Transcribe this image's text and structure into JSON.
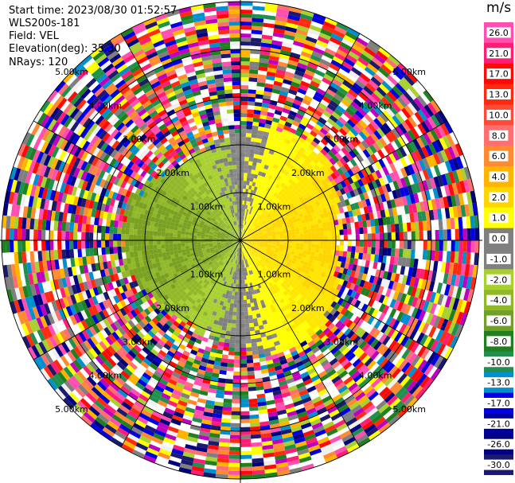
{
  "header": {
    "start_time": "Start time: 2023/08/30 01:52:57",
    "instrument": "WLS200s-181",
    "field": "Field: VEL",
    "elevation": "Elevation(deg): 35.30",
    "nrays": "NRays: 120"
  },
  "colorbar": {
    "unit": "m/s",
    "ticks": [
      "26.0",
      "21.0",
      "17.0",
      "13.0",
      "10.0",
      "8.0",
      "6.0",
      "4.0",
      "2.0",
      "1.0",
      "0.0",
      "-1.0",
      "-2.0",
      "-4.0",
      "-6.0",
      "-8.0",
      "-10.0",
      "-13.0",
      "-17.0",
      "-21.0",
      "-26.0",
      "-30.0"
    ],
    "colors": [
      "#ff4fb0",
      "#ff1d76",
      "#ff0808",
      "#ff2a10",
      "#ff4a38",
      "#ff6f6f",
      "#ff8a30",
      "#ffb400",
      "#ffd500",
      "#ffff00",
      "#7f7f7f",
      "#808080",
      "#a8d030",
      "#90b828",
      "#70a028",
      "#208020",
      "#209050",
      "#0090d0",
      "#0000e0",
      "#0000a0",
      "#000080",
      "#1a1a6e"
    ]
  },
  "chart_data": {
    "type": "heatmap",
    "projection": "polar (PPI scan)",
    "field": "VEL",
    "units": "m/s",
    "nrays": 120,
    "elevation_deg": 35.3,
    "range_rings_km": [
      1.0,
      2.0,
      3.0,
      4.0,
      5.0
    ],
    "ring_labels": [
      "1.00km",
      "2.00km",
      "3.00km",
      "4.00km",
      "5.00km"
    ],
    "vmin": -30.0,
    "vmax": 30.0,
    "pattern": {
      "east_sector": "positive 2–6 m/s (yellow / orange) within ~2.3 km",
      "west_sector": "negative -1 to -4 m/s (yellow-green / olive) within ~2.3 km",
      "near_zero": "gray cells along north and south radials",
      "outer": "noise (all colors) beyond ~2.3 km to 5 km"
    }
  }
}
